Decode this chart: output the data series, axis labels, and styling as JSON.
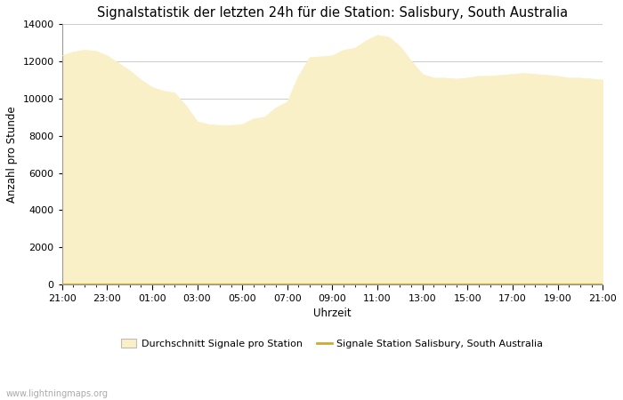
{
  "title": "Signalstatistik der letzten 24h für die Station: Salisbury, South Australia",
  "xlabel": "Uhrzeit",
  "ylabel": "Anzahl pro Stunde",
  "background_color": "#ffffff",
  "fill_color": "#FAF0C8",
  "line_color": "#D4A830",
  "grid_color": "#cccccc",
  "ylim": [
    0,
    14000
  ],
  "yticks": [
    0,
    2000,
    4000,
    6000,
    8000,
    10000,
    12000,
    14000
  ],
  "time_labels": [
    "21:00",
    "23:00",
    "01:00",
    "03:00",
    "05:00",
    "07:00",
    "09:00",
    "11:00",
    "13:00",
    "15:00",
    "17:00",
    "19:00",
    "21:00"
  ],
  "x_values": [
    0,
    0.5,
    1,
    1.5,
    2,
    2.5,
    3,
    3.5,
    4,
    4.5,
    5,
    5.5,
    6,
    6.5,
    7,
    7.5,
    8,
    8.5,
    9,
    9.5,
    10,
    10.5,
    11,
    11.5,
    12,
    12.5,
    13,
    13.5,
    14,
    14.5,
    15,
    15.5,
    16,
    16.5,
    17,
    17.5,
    18,
    18.5,
    19,
    19.5,
    20,
    20.5,
    21,
    21.5,
    22,
    22.5,
    23,
    23.5,
    24
  ],
  "avg_values": [
    12300,
    12500,
    12600,
    12550,
    12300,
    11900,
    11500,
    11000,
    10600,
    10400,
    10300,
    9600,
    8750,
    8600,
    8550,
    8550,
    8600,
    8900,
    9000,
    9500,
    9800,
    11200,
    12200,
    12250,
    12300,
    12600,
    12700,
    13100,
    13400,
    13300,
    12800,
    12000,
    11300,
    11100,
    11100,
    11050,
    11100,
    11200,
    11200,
    11250,
    11300,
    11350,
    11300,
    11250,
    11200,
    11100,
    11100,
    11050,
    11000
  ],
  "station_values": [
    0,
    0,
    0,
    0,
    0,
    0,
    0,
    0,
    0,
    0,
    0,
    0,
    0,
    0,
    0,
    0,
    0,
    0,
    0,
    0,
    0,
    0,
    0,
    0,
    0,
    0,
    0,
    0,
    0,
    0,
    0,
    0,
    0,
    0,
    0,
    0,
    0,
    0,
    0,
    0,
    0,
    0,
    0,
    0,
    0,
    0,
    0,
    0,
    0
  ],
  "legend_labels": [
    "Durchschnitt Signale pro Station",
    "Signale Station Salisbury, South Australia"
  ],
  "watermark": "www.lightningmaps.org",
  "title_fontsize": 10.5,
  "label_fontsize": 8.5,
  "tick_fontsize": 8
}
